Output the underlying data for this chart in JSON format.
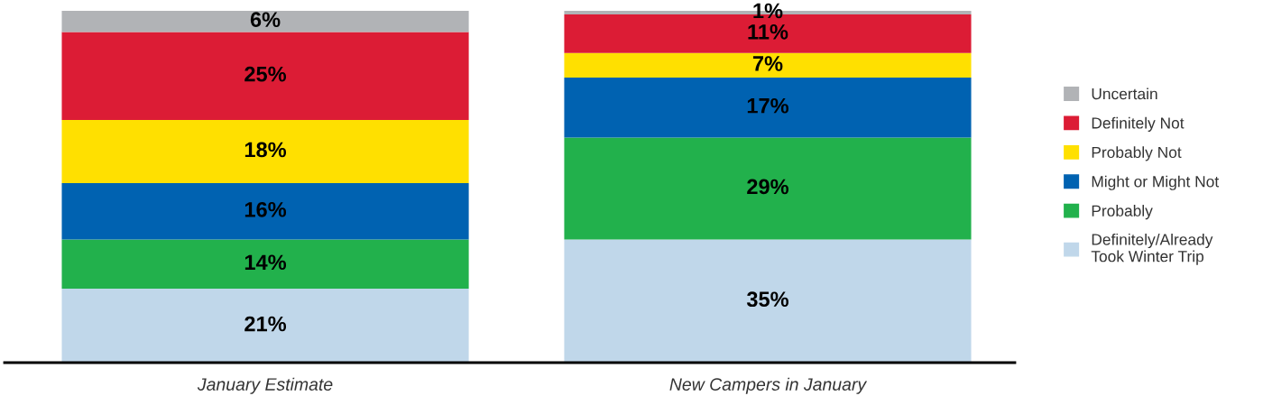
{
  "chart_data": {
    "type": "bar",
    "stacked": true,
    "legend": "right",
    "categories": [
      "January Estimate",
      "New Campers in January"
    ],
    "series": [
      {
        "name": "Definitely/Already\nTook Winter Trip",
        "color": "#c0d7ea",
        "values": [
          21,
          35
        ],
        "value_labels": [
          "21%",
          "35%"
        ]
      },
      {
        "name": "Probably",
        "color": "#22b14c",
        "values": [
          14,
          29
        ],
        "value_labels": [
          "14%",
          "29%"
        ]
      },
      {
        "name": "Might or Might Not",
        "color": "#0062b1",
        "values": [
          16,
          17
        ],
        "value_labels": [
          "16%",
          "17%"
        ]
      },
      {
        "name": "Probably Not",
        "color": "#ffe000",
        "values": [
          18,
          7
        ],
        "value_labels": [
          "18%",
          "7%"
        ]
      },
      {
        "name": "Definitely Not",
        "color": "#dc1c35",
        "values": [
          25,
          11
        ],
        "value_labels": [
          "25%",
          "11%"
        ]
      },
      {
        "name": "Uncertain",
        "color": "#b1b3b6",
        "values": [
          6,
          1
        ],
        "value_labels": [
          "6%",
          "1%"
        ]
      }
    ]
  }
}
